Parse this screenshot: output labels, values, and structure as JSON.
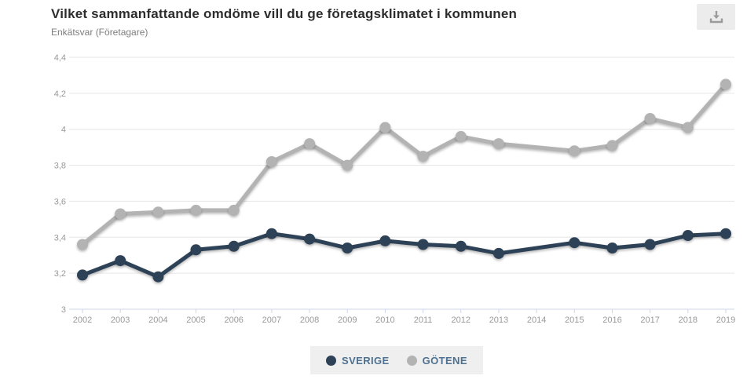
{
  "header": {
    "title": "Vilket sammanfattande omdöme vill du ge företagsklimatet i kommunen",
    "subtitle": "Enkätsvar (Företagare)"
  },
  "toolbar": {
    "download_icon": "download-icon"
  },
  "chart_data": {
    "type": "line",
    "title": "Vilket sammanfattande omdöme vill du ge företagsklimatet i kommunen",
    "subtitle": "Enkätsvar (Företagare)",
    "categories": [
      "2002",
      "2003",
      "2004",
      "2005",
      "2006",
      "2007",
      "2008",
      "2009",
      "2010",
      "2011",
      "2012",
      "2013",
      "2014",
      "2015",
      "2016",
      "2017",
      "2018",
      "2019"
    ],
    "series": [
      {
        "name": "SVERIGE",
        "color": "#2e4257",
        "values": [
          3.19,
          3.27,
          3.18,
          3.33,
          3.35,
          3.42,
          3.39,
          3.34,
          3.38,
          3.36,
          3.35,
          3.31,
          null,
          3.37,
          3.34,
          3.36,
          3.41,
          3.42
        ]
      },
      {
        "name": "GÖTENE",
        "color": "#b3b3b3",
        "values": [
          3.36,
          3.53,
          3.54,
          3.55,
          3.55,
          3.82,
          3.92,
          3.8,
          4.01,
          3.85,
          3.96,
          3.92,
          null,
          3.88,
          3.91,
          4.06,
          4.01,
          4.25
        ]
      }
    ],
    "ylim": [
      3,
      4.4
    ],
    "ytick_step": 0.2,
    "ytick_labels": [
      "3",
      "3,2",
      "3,4",
      "3,6",
      "3,8",
      "4",
      "4,2",
      "4,4"
    ],
    "grid": true,
    "legend_position": "bottom"
  },
  "legend": {
    "items": [
      {
        "label": "SVERIGE",
        "color": "#2e4257"
      },
      {
        "label": "GÖTENE",
        "color": "#b3b3b3"
      }
    ]
  }
}
